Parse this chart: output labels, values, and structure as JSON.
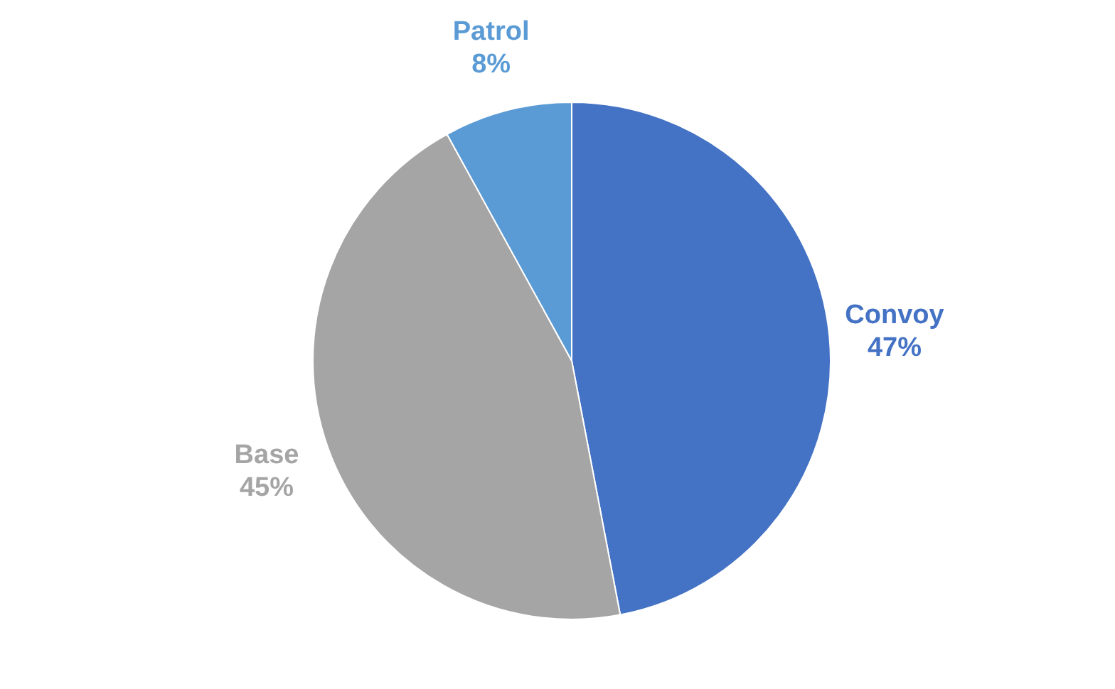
{
  "chart_data": {
    "type": "pie",
    "categories": [
      "Convoy",
      "Base",
      "Patrol"
    ],
    "values": [
      47,
      45,
      8
    ],
    "colors": [
      "#4472c4",
      "#a5a5a5",
      "#5b9bd5"
    ],
    "value_labels": [
      "47%",
      "45%",
      "8%"
    ],
    "legend": false
  }
}
